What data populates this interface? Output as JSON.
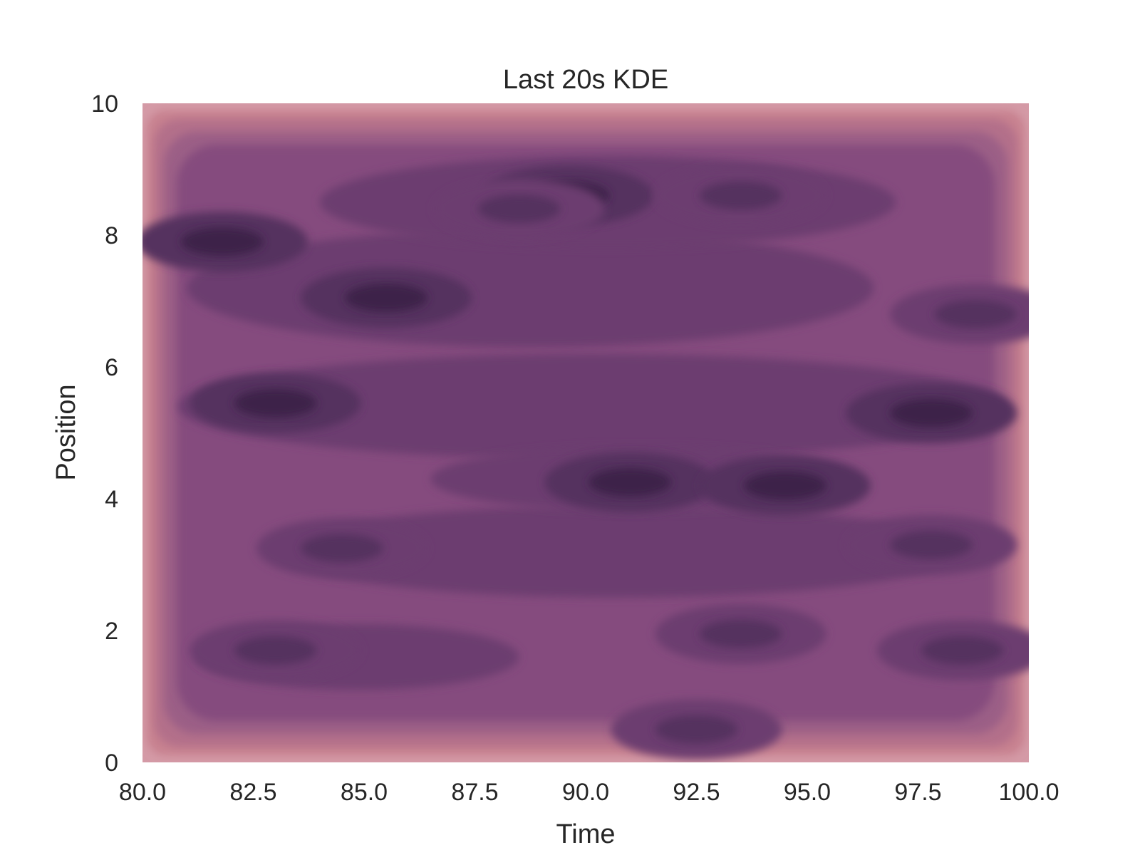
{
  "chart_data": {
    "type": "heatmap",
    "subtype": "kde-contour",
    "title": "Last 20s KDE",
    "xlabel": "Time",
    "ylabel": "Position",
    "xlim": [
      80.0,
      100.0
    ],
    "ylim": [
      0,
      10
    ],
    "x_ticks": [
      "80.0",
      "82.5",
      "85.0",
      "87.5",
      "90.0",
      "92.5",
      "95.0",
      "97.5",
      "100.0"
    ],
    "y_ticks": [
      "0",
      "2",
      "4",
      "6",
      "8",
      "10"
    ],
    "grid": false,
    "legend": "none",
    "colormap": [
      "#d49aa6",
      "#c7818f",
      "#b36f8a",
      "#9b5f86",
      "#854c7e",
      "#6c3d6f",
      "#55305f",
      "#3d2149"
    ],
    "density_peaks": [
      {
        "x": 81.8,
        "y": 7.9,
        "level": 7
      },
      {
        "x": 85.5,
        "y": 7.05,
        "level": 7
      },
      {
        "x": 83.0,
        "y": 5.45,
        "level": 7
      },
      {
        "x": 91.0,
        "y": 4.25,
        "level": 7
      },
      {
        "x": 94.5,
        "y": 4.2,
        "level": 7
      },
      {
        "x": 97.8,
        "y": 5.3,
        "level": 7
      },
      {
        "x": 89.6,
        "y": 8.6,
        "level": 7
      },
      {
        "x": 83.0,
        "y": 1.7,
        "level": 6
      },
      {
        "x": 98.8,
        "y": 6.8,
        "level": 6
      },
      {
        "x": 93.5,
        "y": 1.95,
        "level": 6
      },
      {
        "x": 97.8,
        "y": 3.3,
        "level": 6
      },
      {
        "x": 92.5,
        "y": 0.5,
        "level": 6
      },
      {
        "x": 84.5,
        "y": 3.25,
        "level": 6
      },
      {
        "x": 93.5,
        "y": 8.6,
        "level": 6
      },
      {
        "x": 88.5,
        "y": 8.4,
        "level": 6
      },
      {
        "x": 98.5,
        "y": 1.7,
        "level": 6
      }
    ]
  }
}
